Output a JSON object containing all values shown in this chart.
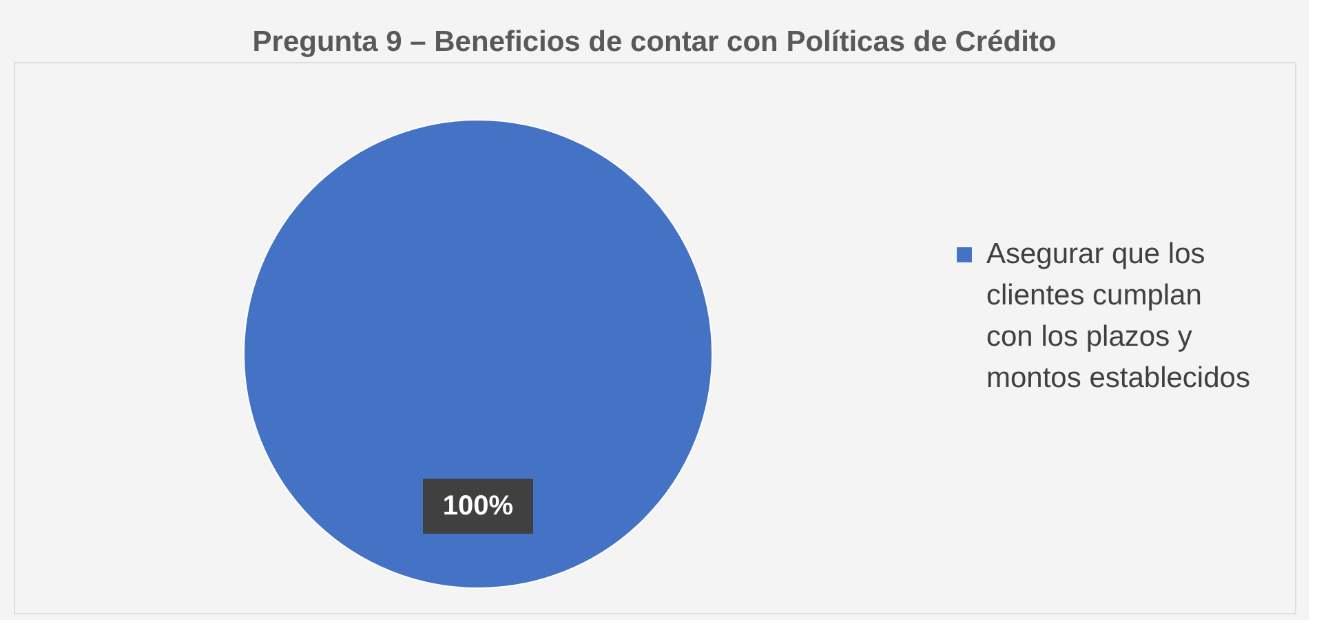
{
  "chart_data": {
    "type": "pie",
    "title": "Pregunta 9 – Beneficios de contar con Políticas de Crédito",
    "categories": [
      "Asegurar que los clientes cumplan con los plazos y montos establecidos"
    ],
    "values": [
      100
    ],
    "colors": [
      "#4472c4"
    ],
    "value_labels": [
      "100%"
    ],
    "legend": "right"
  }
}
